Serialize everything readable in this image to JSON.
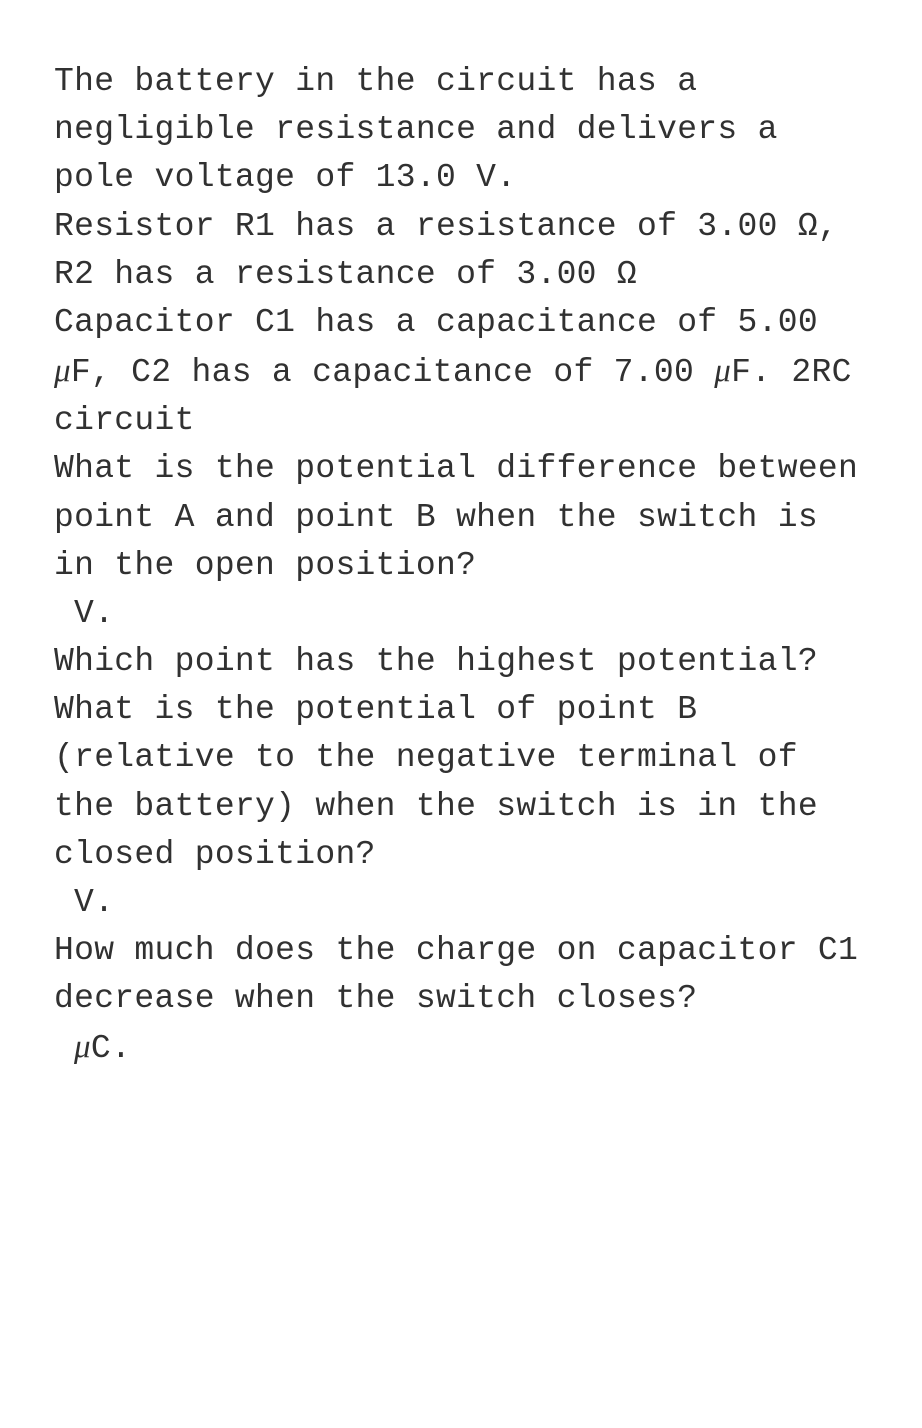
{
  "text_color": "#313131",
  "background_color": "#ffffff",
  "font_family": "Courier New",
  "font_size": 33,
  "line_height": 1.46,
  "paragraphs": {
    "p1": "The battery in the circuit has a negligible resistance and delivers a pole voltage of 13.0 V.",
    "p2": "Resistor R1 has a resistance of 3.00 Ω, R2 has a resistance of 3.00 Ω",
    "p3_a": "Capacitor C1 has a capacitance of 5.00 ",
    "p3_b": "F, C2 has a capacitance of 7.00 ",
    "p3_c": "F. 2RC circuit",
    "p4": "What is the potential difference between point A and point B when the switch is in the open position?",
    "p5": "V.",
    "p6": "Which point has the highest potential?",
    "p7": "What is the potential of point B (relative to the negative terminal of the battery) when the switch is in the closed position?",
    "p8": "V.",
    "p9": "How much does the charge on capacitor C1 decrease when the switch closes?",
    "p10": "C.",
    "mu": "μ"
  }
}
